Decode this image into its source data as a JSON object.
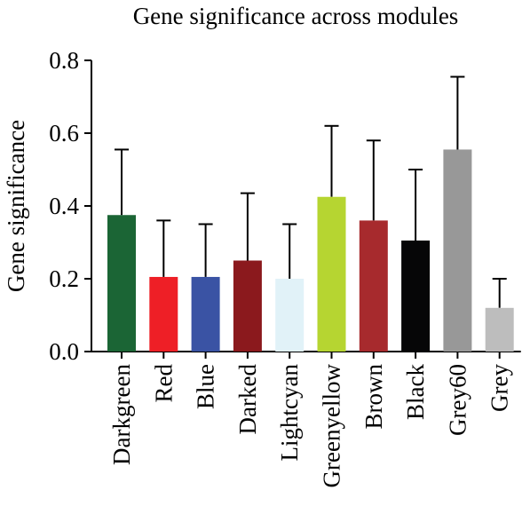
{
  "chart_data": {
    "type": "bar",
    "title": "Gene significance across modules",
    "ylabel": "Gene significance",
    "xlabel": "",
    "ylim": [
      0,
      0.8
    ],
    "yticks": [
      "0.0",
      "0.2",
      "0.4",
      "0.6",
      "0.8"
    ],
    "yticks_values": [
      0,
      0.2,
      0.4,
      0.6,
      0.8
    ],
    "grid": false,
    "categories": [
      "Darkgreen",
      "Red",
      "Blue",
      "Darked",
      "Lightcyan",
      "Greenyellow",
      "Brown",
      "Black",
      "Grey60",
      "Grey"
    ],
    "values": [
      0.375,
      0.205,
      0.205,
      0.25,
      0.2,
      0.425,
      0.36,
      0.305,
      0.555,
      0.12
    ],
    "error_upper": [
      0.555,
      0.36,
      0.35,
      0.435,
      0.35,
      0.62,
      0.58,
      0.5,
      0.755,
      0.2
    ],
    "colors": [
      "#1b6535",
      "#ee1f26",
      "#3a53a4",
      "#8b191d",
      "#e1f2f8",
      "#b6d531",
      "#a72a2d",
      "#060607",
      "#989898",
      "#bdbdbd"
    ]
  }
}
